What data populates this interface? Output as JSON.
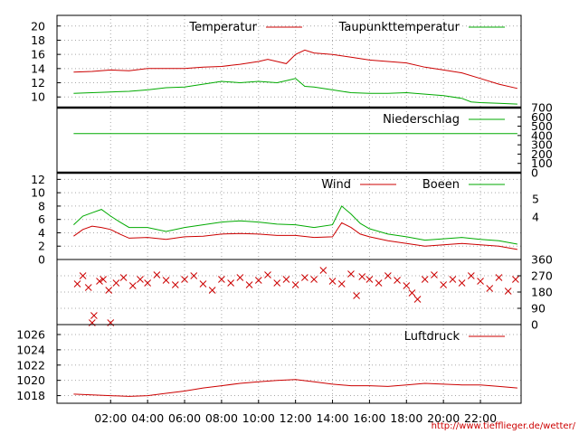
{
  "chart_data": [
    {
      "type": "line",
      "panel": "temperature",
      "yticks": [
        10,
        12,
        14,
        16,
        18,
        20
      ],
      "ylim": [
        8.5,
        21.5
      ],
      "grid": true,
      "legend_position": "top-right",
      "series": [
        {
          "name": "Temperatur",
          "color": "#cc0000",
          "points": [
            [
              0,
              13.5
            ],
            [
              1,
              13.6
            ],
            [
              2,
              13.8
            ],
            [
              3,
              13.7
            ],
            [
              4,
              14.0
            ],
            [
              5,
              14.0
            ],
            [
              6,
              14.0
            ],
            [
              7,
              14.2
            ],
            [
              8,
              14.3
            ],
            [
              9,
              14.6
            ],
            [
              10,
              15.0
            ],
            [
              10.5,
              15.3
            ],
            [
              11,
              15.0
            ],
            [
              11.5,
              14.7
            ],
            [
              12,
              16.0
            ],
            [
              12.5,
              16.6
            ],
            [
              13,
              16.2
            ],
            [
              14,
              16.0
            ],
            [
              15,
              15.6
            ],
            [
              16,
              15.2
            ],
            [
              17,
              15.0
            ],
            [
              18,
              14.8
            ],
            [
              19,
              14.2
            ],
            [
              20,
              13.8
            ],
            [
              21,
              13.4
            ],
            [
              22,
              12.6
            ],
            [
              23,
              11.8
            ],
            [
              24,
              11.2
            ]
          ]
        },
        {
          "name": "Taupunkttemperatur",
          "color": "#00aa00",
          "points": [
            [
              0,
              10.5
            ],
            [
              1,
              10.6
            ],
            [
              2,
              10.7
            ],
            [
              3,
              10.8
            ],
            [
              4,
              11.0
            ],
            [
              5,
              11.3
            ],
            [
              6,
              11.4
            ],
            [
              7,
              11.8
            ],
            [
              8,
              12.2
            ],
            [
              9,
              12.0
            ],
            [
              10,
              12.2
            ],
            [
              11,
              12.0
            ],
            [
              11.5,
              12.3
            ],
            [
              12,
              12.6
            ],
            [
              12.5,
              11.5
            ],
            [
              13,
              11.4
            ],
            [
              14,
              11.0
            ],
            [
              15,
              10.6
            ],
            [
              16,
              10.5
            ],
            [
              17,
              10.5
            ],
            [
              18,
              10.6
            ],
            [
              19,
              10.4
            ],
            [
              20,
              10.2
            ],
            [
              21,
              9.8
            ],
            [
              21.5,
              9.3
            ],
            [
              22,
              9.2
            ],
            [
              23,
              9.1
            ],
            [
              24,
              9.0
            ]
          ]
        }
      ]
    },
    {
      "type": "line",
      "panel": "precipitation",
      "yticks": [
        0,
        100,
        200,
        300,
        400,
        500,
        600,
        700
      ],
      "ylim": [
        0,
        700
      ],
      "grid": false,
      "legend_position": "top-right",
      "series": [
        {
          "name": "Niederschlag",
          "color": "#00aa00",
          "points": [
            [
              0,
              420
            ],
            [
              24,
              420
            ]
          ]
        }
      ]
    },
    {
      "type": "line",
      "panel": "wind",
      "yticks": [
        0,
        2,
        4,
        6,
        8,
        10,
        12
      ],
      "right_ticks": [
        "4",
        "5"
      ],
      "ylim": [
        0,
        13
      ],
      "grid": true,
      "legend_position": "top-right",
      "series": [
        {
          "name": "Wind",
          "color": "#cc0000",
          "points": [
            [
              0,
              3.5
            ],
            [
              0.5,
              4.5
            ],
            [
              1,
              5.0
            ],
            [
              1.5,
              4.8
            ],
            [
              2,
              4.5
            ],
            [
              2.5,
              3.8
            ],
            [
              3,
              3.2
            ],
            [
              4,
              3.3
            ],
            [
              5,
              3.0
            ],
            [
              6,
              3.4
            ],
            [
              7,
              3.5
            ],
            [
              8,
              3.8
            ],
            [
              9,
              3.9
            ],
            [
              10,
              3.8
            ],
            [
              11,
              3.6
            ],
            [
              12,
              3.6
            ],
            [
              13,
              3.3
            ],
            [
              14,
              3.4
            ],
            [
              14.5,
              5.5
            ],
            [
              15,
              4.8
            ],
            [
              15.5,
              3.8
            ],
            [
              16,
              3.4
            ],
            [
              17,
              2.8
            ],
            [
              18,
              2.4
            ],
            [
              19,
              2.0
            ],
            [
              20,
              2.2
            ],
            [
              21,
              2.4
            ],
            [
              22,
              2.2
            ],
            [
              23,
              2.0
            ],
            [
              24,
              1.5
            ]
          ]
        },
        {
          "name": "Boeen",
          "color": "#00aa00",
          "points": [
            [
              0,
              5.2
            ],
            [
              0.5,
              6.5
            ],
            [
              1,
              7.0
            ],
            [
              1.5,
              7.5
            ],
            [
              2,
              6.5
            ],
            [
              2.5,
              5.6
            ],
            [
              3,
              4.8
            ],
            [
              4,
              4.8
            ],
            [
              5,
              4.2
            ],
            [
              6,
              4.8
            ],
            [
              7,
              5.2
            ],
            [
              8,
              5.6
            ],
            [
              9,
              5.8
            ],
            [
              10,
              5.6
            ],
            [
              11,
              5.3
            ],
            [
              12,
              5.2
            ],
            [
              13,
              4.8
            ],
            [
              14,
              5.2
            ],
            [
              14.5,
              8.0
            ],
            [
              15,
              6.8
            ],
            [
              15.5,
              5.4
            ],
            [
              16,
              4.6
            ],
            [
              17,
              3.8
            ],
            [
              18,
              3.4
            ],
            [
              19,
              2.9
            ],
            [
              20,
              3.1
            ],
            [
              21,
              3.3
            ],
            [
              22,
              3.0
            ],
            [
              23,
              2.8
            ],
            [
              24,
              2.3
            ]
          ]
        }
      ]
    },
    {
      "type": "scatter",
      "panel": "wind-direction",
      "yticks": [
        0,
        90,
        180,
        270,
        360
      ],
      "ylim": [
        0,
        360
      ],
      "grid": true,
      "series": [
        {
          "color": "#cc0000",
          "points": [
            [
              0.2,
              225
            ],
            [
              0.5,
              270
            ],
            [
              0.8,
              205
            ],
            [
              1.0,
              10
            ],
            [
              1.1,
              50
            ],
            [
              1.4,
              240
            ],
            [
              1.6,
              250
            ],
            [
              1.9,
              190
            ],
            [
              2.0,
              10
            ],
            [
              2.3,
              230
            ],
            [
              2.7,
              260
            ],
            [
              3.2,
              215
            ],
            [
              3.6,
              250
            ],
            [
              4.0,
              230
            ],
            [
              4.5,
              275
            ],
            [
              5.0,
              245
            ],
            [
              5.5,
              220
            ],
            [
              6.0,
              250
            ],
            [
              6.5,
              270
            ],
            [
              7.0,
              225
            ],
            [
              7.5,
              190
            ],
            [
              8.0,
              250
            ],
            [
              8.5,
              230
            ],
            [
              9.0,
              260
            ],
            [
              9.5,
              220
            ],
            [
              10.0,
              245
            ],
            [
              10.5,
              275
            ],
            [
              11.0,
              230
            ],
            [
              11.5,
              250
            ],
            [
              12.0,
              220
            ],
            [
              12.5,
              260
            ],
            [
              13.0,
              250
            ],
            [
              13.5,
              300
            ],
            [
              14.0,
              240
            ],
            [
              14.5,
              225
            ],
            [
              15.0,
              280
            ],
            [
              15.3,
              160
            ],
            [
              15.6,
              265
            ],
            [
              16.0,
              250
            ],
            [
              16.5,
              230
            ],
            [
              17.0,
              270
            ],
            [
              17.5,
              245
            ],
            [
              18.0,
              215
            ],
            [
              18.3,
              175
            ],
            [
              18.6,
              140
            ],
            [
              19.0,
              250
            ],
            [
              19.5,
              275
            ],
            [
              20.0,
              220
            ],
            [
              20.5,
              250
            ],
            [
              21.0,
              230
            ],
            [
              21.5,
              270
            ],
            [
              22.0,
              240
            ],
            [
              22.5,
              200
            ],
            [
              23.0,
              260
            ],
            [
              23.5,
              185
            ],
            [
              23.9,
              250
            ]
          ]
        }
      ]
    },
    {
      "type": "line",
      "panel": "pressure",
      "yticks": [
        1018,
        1020,
        1022,
        1024,
        1026
      ],
      "ylim": [
        1017,
        1027.3
      ],
      "grid": true,
      "legend_position": "top-right",
      "series": [
        {
          "name": "Luftdruck",
          "color": "#cc0000",
          "points": [
            [
              0,
              1018.2
            ],
            [
              1,
              1018.1
            ],
            [
              2,
              1018.0
            ],
            [
              3,
              1017.9
            ],
            [
              4,
              1018.0
            ],
            [
              5,
              1018.3
            ],
            [
              6,
              1018.6
            ],
            [
              7,
              1019.0
            ],
            [
              8,
              1019.3
            ],
            [
              9,
              1019.6
            ],
            [
              10,
              1019.8
            ],
            [
              11,
              1020.0
            ],
            [
              12,
              1020.1
            ],
            [
              13,
              1019.8
            ],
            [
              14,
              1019.5
            ],
            [
              15,
              1019.3
            ],
            [
              16,
              1019.3
            ],
            [
              17,
              1019.2
            ],
            [
              18,
              1019.4
            ],
            [
              19,
              1019.6
            ],
            [
              20,
              1019.5
            ],
            [
              21,
              1019.4
            ],
            [
              22,
              1019.4
            ],
            [
              23,
              1019.2
            ],
            [
              24,
              1019.0
            ]
          ]
        }
      ]
    }
  ],
  "x_axis": {
    "ticks": [
      "02:00",
      "04:00",
      "06:00",
      "08:00",
      "10:00",
      "12:00",
      "14:00",
      "16:00",
      "18:00",
      "20:00",
      "22:00"
    ],
    "tick_hours": [
      2,
      4,
      6,
      8,
      10,
      12,
      14,
      16,
      18,
      20,
      22
    ],
    "range_hours": [
      -0.9,
      24.2
    ]
  },
  "credit": "http://www.tiefflieger.de/wetter/"
}
